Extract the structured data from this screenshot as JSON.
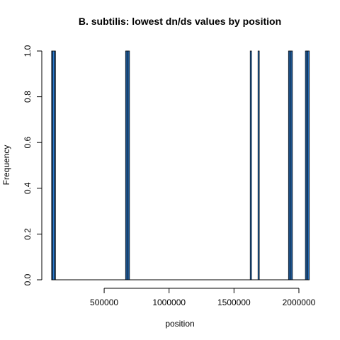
{
  "chart_data": {
    "type": "bar",
    "title": "B. subtilis: lowest dn/ds values by position",
    "xlabel": "position",
    "ylabel": "Frequency",
    "xlim": [
      85000,
      2082000
    ],
    "ylim": [
      0,
      1
    ],
    "x_ticks": [
      500000,
      1000000,
      1500000,
      2000000
    ],
    "x_tick_labels": [
      "500000",
      "1000000",
      "1500000",
      "2000000"
    ],
    "y_ticks": [
      0,
      0.2,
      0.4,
      0.6,
      0.8,
      1.0
    ],
    "y_tick_labels": [
      "0.0",
      "0.2",
      "0.4",
      "0.6",
      "0.8",
      "1.0"
    ],
    "bin_width": 10000,
    "bins": [
      {
        "start": 95000,
        "end": 105000,
        "count": 1
      },
      {
        "start": 105000,
        "end": 115000,
        "count": 1
      },
      {
        "start": 115000,
        "end": 125000,
        "count": 1
      },
      {
        "start": 665000,
        "end": 675000,
        "count": 1
      },
      {
        "start": 675000,
        "end": 685000,
        "count": 1
      },
      {
        "start": 685000,
        "end": 695000,
        "count": 1
      },
      {
        "start": 1625000,
        "end": 1635000,
        "count": 1
      },
      {
        "start": 1685000,
        "end": 1695000,
        "count": 1
      },
      {
        "start": 1920000,
        "end": 1930000,
        "count": 1
      },
      {
        "start": 1930000,
        "end": 1940000,
        "count": 1
      },
      {
        "start": 1940000,
        "end": 1950000,
        "count": 1
      },
      {
        "start": 2050000,
        "end": 2060000,
        "count": 1
      },
      {
        "start": 2060000,
        "end": 2070000,
        "count": 1
      },
      {
        "start": 2070000,
        "end": 2080000,
        "count": 1
      }
    ],
    "bar_color": "#2f86e0"
  }
}
